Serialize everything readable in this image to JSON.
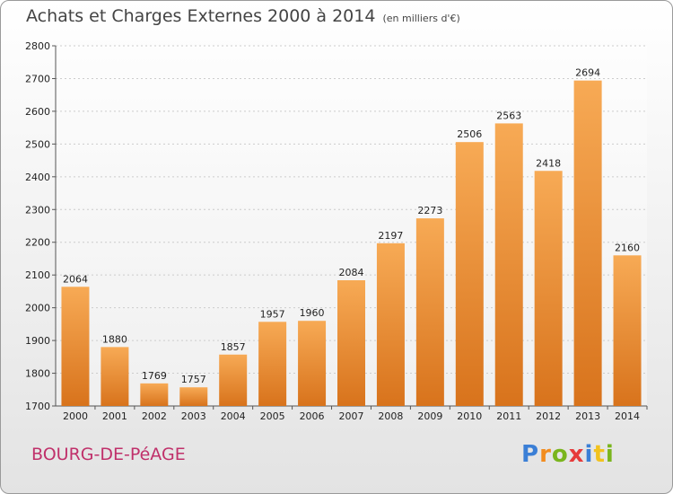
{
  "title": "Achats et Charges Externes 2000 à 2014",
  "subtitle": "(en milliers d'€)",
  "place": "BOURG-DE-PéAGE",
  "logo_text": "Proxiti",
  "colors": {
    "bar_light": "#f7aa55",
    "bar_dark": "#d8731c",
    "place": "#c0306a",
    "grid": "#cccccc"
  },
  "chart_data": {
    "type": "bar",
    "categories": [
      "2000",
      "2001",
      "2002",
      "2003",
      "2004",
      "2005",
      "2006",
      "2007",
      "2008",
      "2009",
      "2010",
      "2011",
      "2012",
      "2013",
      "2014"
    ],
    "values": [
      2064,
      1880,
      1769,
      1757,
      1857,
      1957,
      1960,
      2084,
      2197,
      2273,
      2506,
      2563,
      2418,
      2694,
      2160
    ],
    "yticks": [
      1700,
      1800,
      1900,
      2000,
      2100,
      2200,
      2300,
      2400,
      2500,
      2600,
      2700,
      2800
    ],
    "ylim": [
      1700,
      2800
    ],
    "grid": true,
    "title": "Achats et Charges Externes 2000 à 2014",
    "xlabel": "",
    "ylabel": ""
  }
}
